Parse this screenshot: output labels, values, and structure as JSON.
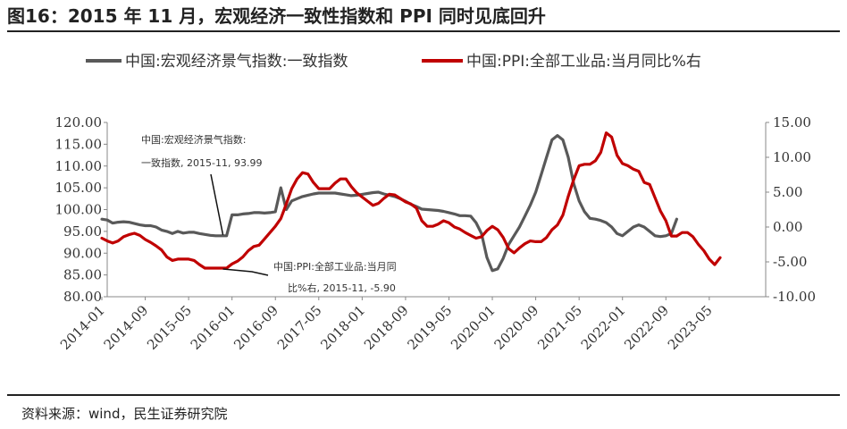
{
  "header": {
    "title": "图16：2015 年 11 月，宏观经济一致性指数和 PPI 同时见底回升"
  },
  "footer": {
    "source": "资料来源：wind，民生证券研究院"
  },
  "colors": {
    "series_index": "#595959",
    "series_ppi": "#c00000",
    "rule": "#222222"
  },
  "chart_data": {
    "type": "line",
    "title": "2015 年 11 月，宏观经济一致性指数和 PPI 同时见底回升",
    "x_tick_labels": [
      "2014-01",
      "2014-09",
      "2015-05",
      "2016-01",
      "2016-09",
      "2017-05",
      "2018-01",
      "2018-09",
      "2019-05",
      "2020-01",
      "2020-09",
      "2021-05",
      "2022-01",
      "2022-09",
      "2023-05"
    ],
    "y_left": {
      "ylim": [
        80,
        120
      ],
      "ticks": [
        "80.00",
        "85.00",
        "90.00",
        "95.00",
        "100.00",
        "105.00",
        "110.00",
        "115.00",
        "120.00"
      ]
    },
    "y_right": {
      "ylim": [
        -10,
        15
      ],
      "ticks": [
        "-10.00",
        "-5.00",
        "0.00",
        "5.00",
        "10.00",
        "15.00"
      ]
    },
    "series": [
      {
        "name": "中国:宏观经济景气指数:一致指数",
        "axis": "left",
        "start": "2014-01",
        "values": [
          97.8,
          97.6,
          96.9,
          97.1,
          97.2,
          97.1,
          96.8,
          96.5,
          96.3,
          96.3,
          96.0,
          95.3,
          95.0,
          94.5,
          95.0,
          94.6,
          94.8,
          94.8,
          94.5,
          94.3,
          94.1,
          94.0,
          94.0,
          94.0,
          98.8,
          98.8,
          99.0,
          99.1,
          99.3,
          99.3,
          99.2,
          99.3,
          99.5,
          105.0,
          100.0,
          102.0,
          102.5,
          103.0,
          103.3,
          103.6,
          103.8,
          103.8,
          103.8,
          103.8,
          103.6,
          103.4,
          103.2,
          103.3,
          103.5,
          103.7,
          103.9,
          104.0,
          103.6,
          103.3,
          103.0,
          102.5,
          101.9,
          101.2,
          100.7,
          100.1,
          100.0,
          99.9,
          99.8,
          99.6,
          99.3,
          99.0,
          98.6,
          98.6,
          98.5,
          97.0,
          94.5,
          89.0,
          86.0,
          86.4,
          88.8,
          92.0,
          94.0,
          96.0,
          98.5,
          101.0,
          104.0,
          108.0,
          112.0,
          116.0,
          117.0,
          116.0,
          112.0,
          106.0,
          102.0,
          99.5,
          98.0,
          97.8,
          97.5,
          97.0,
          96.0,
          94.5,
          94.0,
          95.0,
          96.0,
          96.5,
          96.0,
          95.0,
          94.0,
          93.8,
          94.0,
          94.5,
          97.8
        ],
        "annotation": {
          "lines": [
            "中国:宏观经济景气指数:",
            "一致指数, 2015-11, 93.99"
          ],
          "date": "2015-11",
          "value": 93.99
        }
      },
      {
        "name": "中国:PPI:全部工业品:当月同比%右",
        "axis": "right",
        "start": "2014-01",
        "values": [
          -1.6,
          -2.0,
          -2.3,
          -2.0,
          -1.4,
          -1.1,
          -0.9,
          -1.2,
          -1.8,
          -2.2,
          -2.7,
          -3.3,
          -4.3,
          -4.8,
          -4.6,
          -4.6,
          -4.6,
          -4.8,
          -5.4,
          -5.9,
          -5.9,
          -5.9,
          -5.9,
          -5.9,
          -5.3,
          -4.9,
          -4.3,
          -3.4,
          -2.8,
          -2.6,
          -1.7,
          -0.8,
          0.1,
          1.2,
          3.3,
          5.5,
          6.9,
          7.8,
          7.6,
          6.4,
          5.5,
          5.5,
          5.5,
          6.3,
          6.9,
          6.9,
          5.8,
          4.9,
          4.3,
          3.7,
          3.1,
          3.4,
          4.1,
          4.7,
          4.6,
          4.1,
          3.6,
          3.3,
          2.7,
          0.9,
          0.1,
          0.1,
          0.4,
          0.9,
          0.6,
          0.0,
          -0.3,
          -0.8,
          -1.2,
          -1.6,
          -1.4,
          -0.5,
          0.1,
          -0.4,
          -1.5,
          -3.1,
          -3.7,
          -3.0,
          -2.4,
          -2.0,
          -2.1,
          -2.1,
          -1.5,
          -0.4,
          0.3,
          1.7,
          4.4,
          6.8,
          8.8,
          9.0,
          9.0,
          9.5,
          10.7,
          13.5,
          12.9,
          10.3,
          9.1,
          8.8,
          8.3,
          8.0,
          6.4,
          6.1,
          4.2,
          2.3,
          0.9,
          -1.3,
          -1.3,
          -0.8,
          -0.8,
          -1.4,
          -2.5,
          -3.4,
          -4.6,
          -5.4,
          -4.4
        ],
        "annotation": {
          "lines": [
            "中国:PPI:全部工业品:当月同",
            "比%右, 2015-11, -5.90"
          ],
          "date": "2015-11",
          "value": -5.9
        }
      }
    ],
    "legend_position": "top-center"
  }
}
